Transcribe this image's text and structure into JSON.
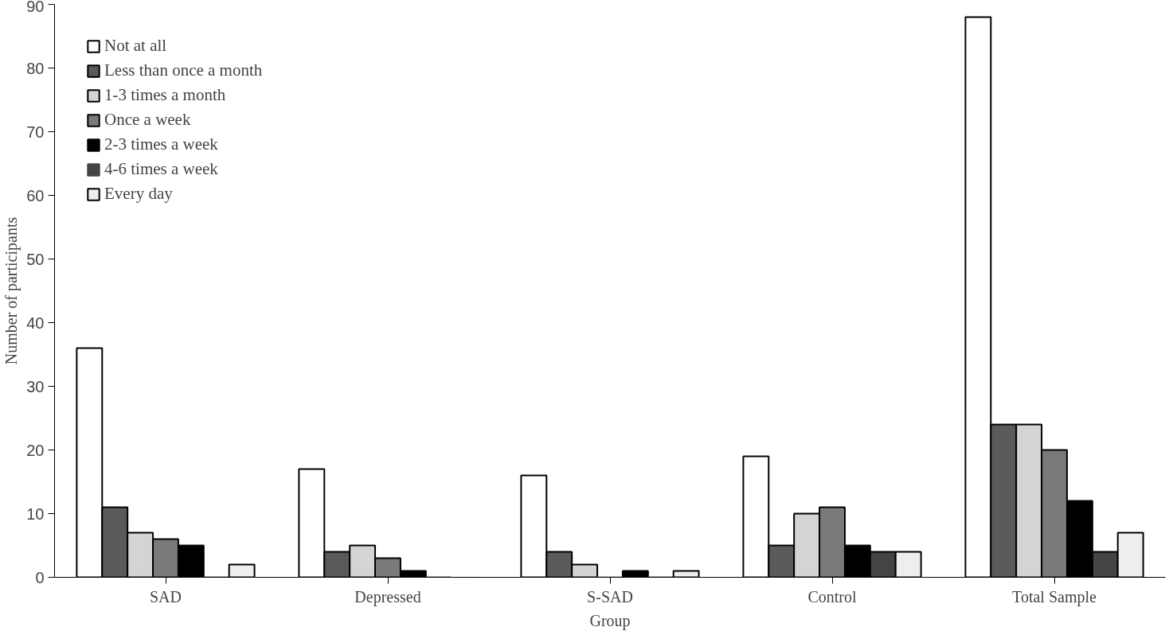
{
  "chart_data": {
    "type": "bar",
    "xlabel": "Group",
    "ylabel": "Number of participants",
    "categories": [
      "SAD",
      "Depressed",
      "S-SAD",
      "Control",
      "Total Sample"
    ],
    "series": [
      {
        "name": "Not at all",
        "color": "#ffffff",
        "values": [
          36,
          17,
          16,
          19,
          88
        ]
      },
      {
        "name": "Less than once a month",
        "color": "#5a5a5a",
        "values": [
          11,
          4,
          4,
          5,
          24
        ]
      },
      {
        "name": "1-3 times a month",
        "color": "#d4d4d4",
        "values": [
          7,
          5,
          2,
          10,
          24
        ]
      },
      {
        "name": "Once a week",
        "color": "#7a7a7a",
        "values": [
          6,
          3,
          0,
          11,
          20
        ]
      },
      {
        "name": "2-3 times a week",
        "color": "#000000",
        "values": [
          5,
          1,
          1,
          5,
          12
        ]
      },
      {
        "name": "4-6 times a week",
        "color": "#444444",
        "values": [
          0,
          0,
          0,
          4,
          4
        ]
      },
      {
        "name": "Every day",
        "color": "#eeeeee",
        "values": [
          2,
          0,
          1,
          4,
          7
        ]
      }
    ],
    "ylim": [
      0,
      90
    ],
    "yticks": [
      0,
      10,
      20,
      30,
      40,
      50,
      60,
      70,
      80,
      90
    ],
    "grid": false,
    "legend": "top left"
  }
}
